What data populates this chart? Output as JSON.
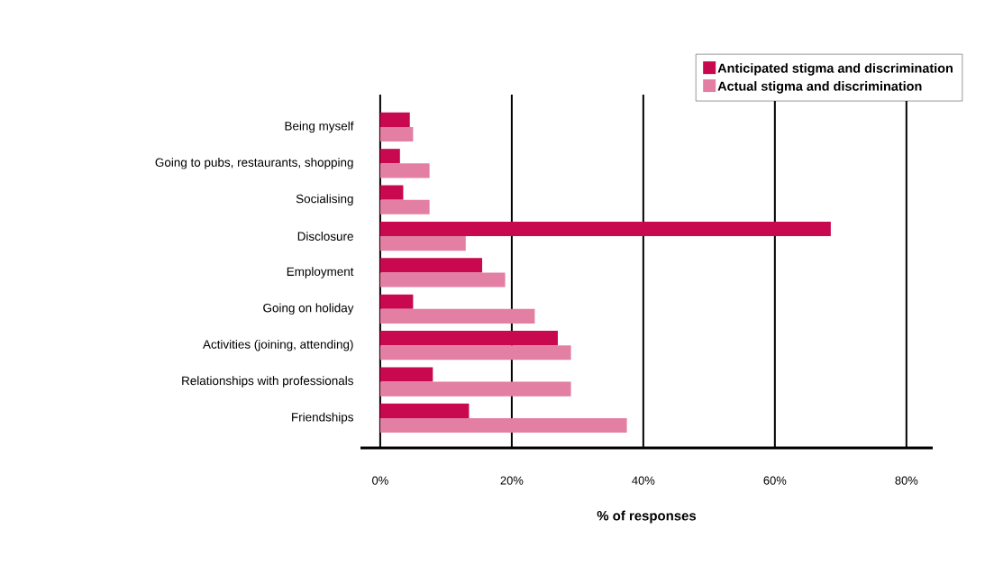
{
  "chart_data": {
    "type": "bar",
    "orientation": "horizontal",
    "xlabel": "% of responses",
    "categories": [
      "Being myself",
      "Going to pubs, restaurants, shopping",
      "Socialising",
      "Disclosure",
      "Employment",
      "Going on holiday",
      "Activities (joining, attending)",
      "Relationships with professionals",
      "Friendships"
    ],
    "series": [
      {
        "name": "Anticipated stigma and discrimination",
        "color": "#c8094f",
        "values": [
          4.5,
          3,
          3.5,
          68.5,
          15.5,
          5,
          27,
          8,
          13.5
        ]
      },
      {
        "name": "Actual stigma and discrimination",
        "color": "#e37fa3",
        "values": [
          5,
          7.5,
          7.5,
          13,
          19,
          23.5,
          29,
          29,
          37.5
        ]
      }
    ],
    "xlim": [
      -3,
      84
    ],
    "xticks": [
      {
        "value": 0,
        "label": "0%"
      },
      {
        "value": 20,
        "label": "20%"
      },
      {
        "value": 40,
        "label": "40%"
      },
      {
        "value": 60,
        "label": "60%"
      },
      {
        "value": 80,
        "label": "80%"
      }
    ],
    "grid": "x",
    "legend": "top right"
  }
}
